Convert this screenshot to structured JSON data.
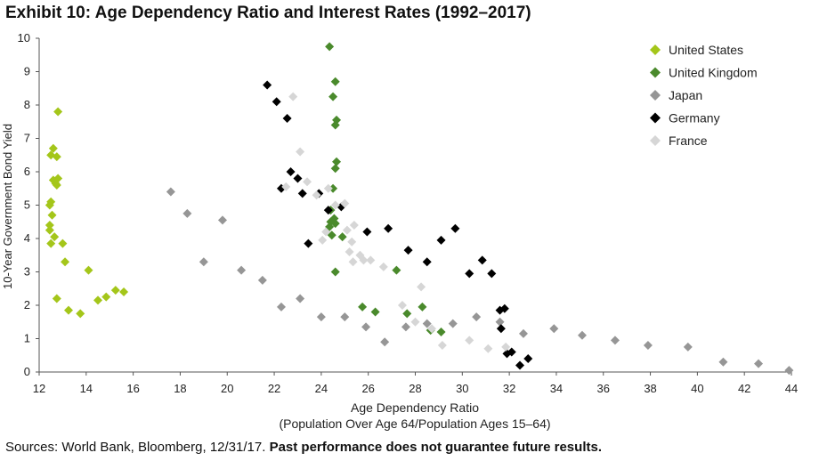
{
  "title": "Exhibit 10: Age Dependency Ratio and Interest Rates (1992–2017)",
  "source": {
    "plain": "Sources: World Bank, Bloomberg, 12/31/17. ",
    "bold": "Past performance does not guarantee future results."
  },
  "chart_data": {
    "type": "scatter",
    "title": "Exhibit 10: Age Dependency Ratio and Interest Rates (1992–2017)",
    "xlabel": "Age Dependency Ratio",
    "xlabel_sub": "(Population Over Age 64/Population Ages 15–64)",
    "ylabel": "10-Year Government Bond Yield",
    "xlim": [
      12,
      44
    ],
    "ylim": [
      0,
      10
    ],
    "x_ticks": [
      12,
      14,
      16,
      18,
      20,
      22,
      24,
      26,
      28,
      30,
      32,
      34,
      36,
      38,
      40,
      42,
      44
    ],
    "y_ticks": [
      0,
      1,
      2,
      3,
      4,
      5,
      6,
      7,
      8,
      9,
      10
    ],
    "grid": false,
    "legend_position": "top-right",
    "series": [
      {
        "name": "United States",
        "color": "#a4c61a",
        "points": [
          [
            12.8,
            7.8
          ],
          [
            12.6,
            6.7
          ],
          [
            12.5,
            6.5
          ],
          [
            12.75,
            6.45
          ],
          [
            12.6,
            5.75
          ],
          [
            12.8,
            5.8
          ],
          [
            12.7,
            5.65
          ],
          [
            12.75,
            5.6
          ],
          [
            12.5,
            5.1
          ],
          [
            12.45,
            5.0
          ],
          [
            12.55,
            4.7
          ],
          [
            12.45,
            4.4
          ],
          [
            12.45,
            4.25
          ],
          [
            12.65,
            4.05
          ],
          [
            12.5,
            3.85
          ],
          [
            13.0,
            3.85
          ],
          [
            13.1,
            3.3
          ],
          [
            14.1,
            3.05
          ],
          [
            12.75,
            2.2
          ],
          [
            13.25,
            1.85
          ],
          [
            13.75,
            1.75
          ],
          [
            14.5,
            2.15
          ],
          [
            14.85,
            2.25
          ],
          [
            15.25,
            2.45
          ],
          [
            15.6,
            2.4
          ]
        ]
      },
      {
        "name": "United Kingdom",
        "color": "#4a8a2c",
        "points": [
          [
            24.35,
            9.75
          ],
          [
            24.6,
            8.7
          ],
          [
            24.5,
            8.25
          ],
          [
            24.65,
            7.55
          ],
          [
            24.6,
            7.4
          ],
          [
            24.65,
            6.3
          ],
          [
            24.6,
            6.1
          ],
          [
            24.5,
            5.5
          ],
          [
            24.4,
            4.85
          ],
          [
            24.55,
            4.6
          ],
          [
            24.4,
            4.5
          ],
          [
            24.6,
            4.45
          ],
          [
            24.35,
            4.35
          ],
          [
            24.45,
            4.1
          ],
          [
            24.9,
            4.05
          ],
          [
            24.6,
            3.0
          ],
          [
            27.2,
            3.05
          ],
          [
            25.75,
            1.95
          ],
          [
            26.3,
            1.8
          ],
          [
            27.65,
            1.75
          ],
          [
            28.3,
            1.95
          ],
          [
            28.65,
            1.25
          ],
          [
            29.1,
            1.2
          ]
        ]
      },
      {
        "name": "Japan",
        "color": "#969696",
        "points": [
          [
            17.6,
            5.4
          ],
          [
            18.3,
            4.75
          ],
          [
            19.8,
            4.55
          ],
          [
            19.0,
            3.3
          ],
          [
            20.6,
            3.05
          ],
          [
            21.5,
            2.75
          ],
          [
            22.3,
            1.95
          ],
          [
            23.1,
            2.2
          ],
          [
            24.0,
            1.65
          ],
          [
            25.0,
            1.65
          ],
          [
            25.9,
            1.35
          ],
          [
            26.7,
            0.9
          ],
          [
            27.6,
            1.35
          ],
          [
            28.5,
            1.45
          ],
          [
            29.6,
            1.45
          ],
          [
            30.6,
            1.65
          ],
          [
            31.6,
            1.5
          ],
          [
            32.6,
            1.15
          ],
          [
            33.9,
            1.3
          ],
          [
            35.1,
            1.1
          ],
          [
            36.5,
            0.95
          ],
          [
            37.9,
            0.8
          ],
          [
            39.6,
            0.75
          ],
          [
            41.1,
            0.3
          ],
          [
            42.6,
            0.25
          ],
          [
            43.9,
            0.05
          ]
        ]
      },
      {
        "name": "Germany",
        "color": "#000000",
        "points": [
          [
            21.7,
            8.6
          ],
          [
            22.1,
            8.1
          ],
          [
            22.55,
            7.6
          ],
          [
            22.7,
            6.0
          ],
          [
            23.0,
            5.8
          ],
          [
            22.3,
            5.5
          ],
          [
            23.2,
            5.35
          ],
          [
            23.9,
            5.35
          ],
          [
            24.3,
            4.85
          ],
          [
            24.85,
            4.95
          ],
          [
            23.45,
            3.85
          ],
          [
            25.95,
            4.2
          ],
          [
            26.85,
            4.3
          ],
          [
            27.7,
            3.65
          ],
          [
            28.5,
            3.3
          ],
          [
            29.1,
            3.95
          ],
          [
            29.7,
            4.3
          ],
          [
            30.3,
            2.95
          ],
          [
            30.85,
            3.35
          ],
          [
            31.25,
            2.95
          ],
          [
            31.6,
            1.85
          ],
          [
            31.8,
            1.9
          ],
          [
            31.65,
            1.3
          ],
          [
            31.9,
            0.55
          ],
          [
            32.1,
            0.6
          ],
          [
            32.45,
            0.2
          ],
          [
            32.8,
            0.4
          ]
        ]
      },
      {
        "name": "France",
        "color": "#d6d6d6",
        "points": [
          [
            22.8,
            8.25
          ],
          [
            23.1,
            6.6
          ],
          [
            22.5,
            5.55
          ],
          [
            23.4,
            5.7
          ],
          [
            23.8,
            5.3
          ],
          [
            24.3,
            5.5
          ],
          [
            24.6,
            5.0
          ],
          [
            25.0,
            5.05
          ],
          [
            24.2,
            4.2
          ],
          [
            25.1,
            4.25
          ],
          [
            25.4,
            4.4
          ],
          [
            24.05,
            3.95
          ],
          [
            25.3,
            3.9
          ],
          [
            25.2,
            3.6
          ],
          [
            25.65,
            3.5
          ],
          [
            25.35,
            3.3
          ],
          [
            25.8,
            3.35
          ],
          [
            26.1,
            3.35
          ],
          [
            26.65,
            3.15
          ],
          [
            28.25,
            2.55
          ],
          [
            27.45,
            2.0
          ],
          [
            28.0,
            1.5
          ],
          [
            28.7,
            1.3
          ],
          [
            29.15,
            0.8
          ],
          [
            30.3,
            0.95
          ],
          [
            31.1,
            0.7
          ],
          [
            31.85,
            0.75
          ]
        ]
      }
    ]
  }
}
